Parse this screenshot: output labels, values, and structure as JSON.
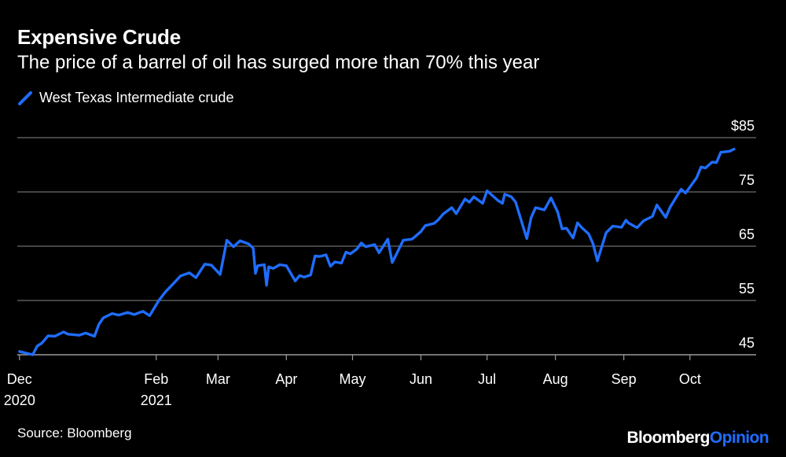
{
  "title": "Expensive Crude",
  "subtitle": "The price of a barrel of oil has surged more than 70% this year",
  "source": "Source: Bloomberg",
  "brand": {
    "part1": "Bloomberg",
    "part2": "Opinion"
  },
  "chart_data": {
    "type": "line",
    "title": "Expensive Crude",
    "subtitle": "The price of a barrel of oil has surged more than 70% this year",
    "xlabel": "",
    "ylabel": "",
    "ylim": [
      45,
      85
    ],
    "xlim": [
      "2020-11-30",
      "2021-10-31"
    ],
    "y_ticks": [
      {
        "value": 85,
        "label": "$85"
      },
      {
        "value": 75,
        "label": "75"
      },
      {
        "value": 65,
        "label": "65"
      },
      {
        "value": 55,
        "label": "55"
      },
      {
        "value": 45,
        "label": "45"
      }
    ],
    "x_ticks": [
      {
        "date": "2020-12-01",
        "label": "Dec",
        "sublabel": "2020"
      },
      {
        "date": "2021-02-01",
        "label": "Feb",
        "sublabel": "2021"
      },
      {
        "date": "2021-03-01",
        "label": "Mar",
        "sublabel": ""
      },
      {
        "date": "2021-04-01",
        "label": "Apr",
        "sublabel": ""
      },
      {
        "date": "2021-05-01",
        "label": "May",
        "sublabel": ""
      },
      {
        "date": "2021-06-01",
        "label": "Jun",
        "sublabel": ""
      },
      {
        "date": "2021-07-01",
        "label": "Jul",
        "sublabel": ""
      },
      {
        "date": "2021-08-01",
        "label": "Aug",
        "sublabel": ""
      },
      {
        "date": "2021-09-01",
        "label": "Sep",
        "sublabel": ""
      },
      {
        "date": "2021-10-01",
        "label": "Oct",
        "sublabel": ""
      }
    ],
    "grid": true,
    "legend": "top-left",
    "series": [
      {
        "name": "West Texas Intermediate crude",
        "color": "#1f6dff",
        "points": [
          [
            "2020-12-01",
            45.6
          ],
          [
            "2020-12-04",
            45.3
          ],
          [
            "2020-12-07",
            45.0
          ],
          [
            "2020-12-09",
            46.6
          ],
          [
            "2020-12-11",
            47.1
          ],
          [
            "2020-12-14",
            48.5
          ],
          [
            "2020-12-17",
            48.4
          ],
          [
            "2020-12-21",
            49.2
          ],
          [
            "2020-12-23",
            48.8
          ],
          [
            "2020-12-28",
            48.6
          ],
          [
            "2020-12-31",
            49.0
          ],
          [
            "2021-01-04",
            48.4
          ],
          [
            "2021-01-06",
            50.6
          ],
          [
            "2021-01-08",
            51.8
          ],
          [
            "2021-01-12",
            52.6
          ],
          [
            "2021-01-15",
            52.3
          ],
          [
            "2021-01-19",
            52.8
          ],
          [
            "2021-01-22",
            52.4
          ],
          [
            "2021-01-26",
            53.0
          ],
          [
            "2021-01-29",
            52.2
          ],
          [
            "2021-02-02",
            54.9
          ],
          [
            "2021-02-05",
            56.5
          ],
          [
            "2021-02-09",
            58.2
          ],
          [
            "2021-02-12",
            59.5
          ],
          [
            "2021-02-16",
            60.1
          ],
          [
            "2021-02-19",
            59.2
          ],
          [
            "2021-02-23",
            61.7
          ],
          [
            "2021-02-26",
            61.5
          ],
          [
            "2021-03-02",
            59.8
          ],
          [
            "2021-03-05",
            66.1
          ],
          [
            "2021-03-08",
            64.9
          ],
          [
            "2021-03-11",
            66.0
          ],
          [
            "2021-03-15",
            65.4
          ],
          [
            "2021-03-17",
            64.6
          ],
          [
            "2021-03-18",
            60.0
          ],
          [
            "2021-03-19",
            61.4
          ],
          [
            "2021-03-22",
            61.6
          ],
          [
            "2021-03-23",
            57.8
          ],
          [
            "2021-03-24",
            61.2
          ],
          [
            "2021-03-26",
            60.9
          ],
          [
            "2021-03-29",
            61.6
          ],
          [
            "2021-04-01",
            61.4
          ],
          [
            "2021-04-05",
            58.6
          ],
          [
            "2021-04-07",
            59.6
          ],
          [
            "2021-04-09",
            59.3
          ],
          [
            "2021-04-12",
            59.7
          ],
          [
            "2021-04-14",
            63.2
          ],
          [
            "2021-04-16",
            63.1
          ],
          [
            "2021-04-19",
            63.4
          ],
          [
            "2021-04-21",
            61.3
          ],
          [
            "2021-04-23",
            62.1
          ],
          [
            "2021-04-26",
            61.9
          ],
          [
            "2021-04-28",
            63.9
          ],
          [
            "2021-04-30",
            63.6
          ],
          [
            "2021-05-03",
            64.5
          ],
          [
            "2021-05-05",
            65.6
          ],
          [
            "2021-05-07",
            64.9
          ],
          [
            "2021-05-11",
            65.3
          ],
          [
            "2021-05-13",
            63.8
          ],
          [
            "2021-05-17",
            66.3
          ],
          [
            "2021-05-19",
            62.0
          ],
          [
            "2021-05-21",
            63.6
          ],
          [
            "2021-05-24",
            66.1
          ],
          [
            "2021-05-26",
            66.2
          ],
          [
            "2021-05-28",
            66.3
          ],
          [
            "2021-06-01",
            67.7
          ],
          [
            "2021-06-03",
            68.8
          ],
          [
            "2021-06-07",
            69.2
          ],
          [
            "2021-06-09",
            69.9
          ],
          [
            "2021-06-11",
            70.9
          ],
          [
            "2021-06-15",
            72.1
          ],
          [
            "2021-06-17",
            71.0
          ],
          [
            "2021-06-21",
            73.7
          ],
          [
            "2021-06-23",
            73.1
          ],
          [
            "2021-06-25",
            74.1
          ],
          [
            "2021-06-29",
            72.9
          ],
          [
            "2021-07-01",
            75.2
          ],
          [
            "2021-07-06",
            73.4
          ],
          [
            "2021-07-08",
            72.9
          ],
          [
            "2021-07-09",
            74.6
          ],
          [
            "2021-07-12",
            74.1
          ],
          [
            "2021-07-14",
            73.1
          ],
          [
            "2021-07-15",
            71.7
          ],
          [
            "2021-07-19",
            66.4
          ],
          [
            "2021-07-21",
            70.3
          ],
          [
            "2021-07-23",
            72.1
          ],
          [
            "2021-07-27",
            71.7
          ],
          [
            "2021-07-30",
            73.9
          ],
          [
            "2021-08-02",
            71.3
          ],
          [
            "2021-08-04",
            68.2
          ],
          [
            "2021-08-06",
            68.3
          ],
          [
            "2021-08-09",
            66.5
          ],
          [
            "2021-08-11",
            69.3
          ],
          [
            "2021-08-13",
            68.4
          ],
          [
            "2021-08-16",
            67.3
          ],
          [
            "2021-08-18",
            65.5
          ],
          [
            "2021-08-20",
            62.3
          ],
          [
            "2021-08-24",
            67.5
          ],
          [
            "2021-08-27",
            68.7
          ],
          [
            "2021-08-31",
            68.5
          ],
          [
            "2021-09-02",
            69.8
          ],
          [
            "2021-09-03",
            69.3
          ],
          [
            "2021-09-07",
            68.4
          ],
          [
            "2021-09-10",
            69.7
          ],
          [
            "2021-09-14",
            70.5
          ],
          [
            "2021-09-16",
            72.6
          ],
          [
            "2021-09-20",
            70.3
          ],
          [
            "2021-09-22",
            72.2
          ],
          [
            "2021-09-27",
            75.5
          ],
          [
            "2021-09-29",
            74.8
          ],
          [
            "2021-10-01",
            75.9
          ],
          [
            "2021-10-04",
            77.6
          ],
          [
            "2021-10-06",
            79.6
          ],
          [
            "2021-10-08",
            79.4
          ],
          [
            "2021-10-11",
            80.5
          ],
          [
            "2021-10-13",
            80.4
          ],
          [
            "2021-10-15",
            82.3
          ],
          [
            "2021-10-19",
            82.5
          ],
          [
            "2021-10-21",
            82.9
          ]
        ]
      }
    ]
  }
}
